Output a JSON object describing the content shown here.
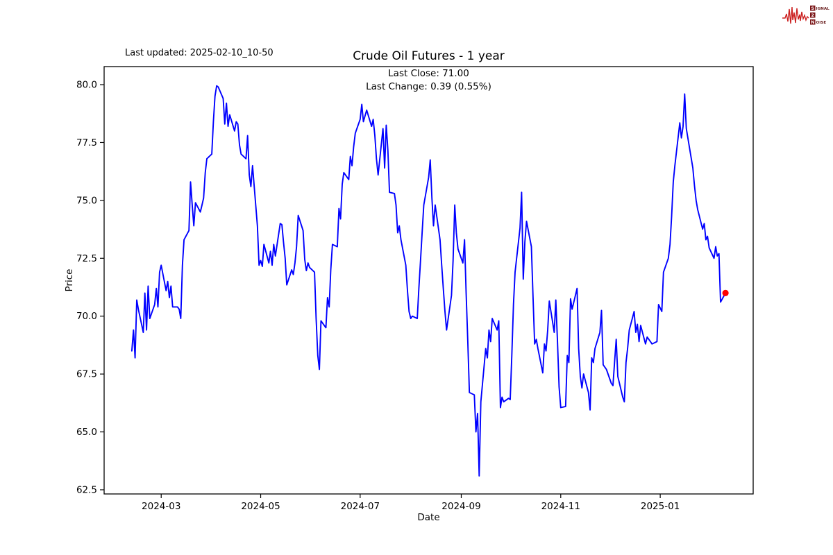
{
  "header": {
    "last_updated": "Last updated: 2025-02-10_10-50",
    "title": "Crude Oil Futures - 1 year",
    "subtitle_line1": "Last Close: 71.00",
    "subtitle_line2": "Last Change: 0.39 (0.55%)"
  },
  "logo": {
    "row1_initial": "S",
    "row1_rest": "IGNAL",
    "row2_initial": "2",
    "row2_rest": "",
    "row3_initial": "N",
    "row3_rest": "OISE",
    "wave_color": "#cc2020",
    "box_color": "#7a1416",
    "text_color": "#6b2020",
    "box_letter_color": "#ffffff"
  },
  "chart_data": {
    "type": "line",
    "title": "Crude Oil Futures - 1 year",
    "xlabel": "Date",
    "ylabel": "Price",
    "last_close": 71.0,
    "last_change": 0.39,
    "last_change_pct": "0.55%",
    "line_color": "#0000ff",
    "marker_color": "#ff0000",
    "axis_color": "#000000",
    "background_color": "#ffffff",
    "grid": false,
    "legend": "none",
    "xlim": [
      "2024-01-26",
      "2025-02-27"
    ],
    "ylim": [
      62.32,
      80.78
    ],
    "yticks": [
      {
        "value": 62.5,
        "label": "62.5"
      },
      {
        "value": 65.0,
        "label": "65.0"
      },
      {
        "value": 67.5,
        "label": "67.5"
      },
      {
        "value": 70.0,
        "label": "70.0"
      },
      {
        "value": 72.5,
        "label": "72.5"
      },
      {
        "value": 75.0,
        "label": "75.0"
      },
      {
        "value": 77.5,
        "label": "77.5"
      },
      {
        "value": 80.0,
        "label": "80.0"
      }
    ],
    "xticks": [
      {
        "value": "2024-03-01",
        "label": "2024-03"
      },
      {
        "value": "2024-05-01",
        "label": "2024-05"
      },
      {
        "value": "2024-07-01",
        "label": "2024-07"
      },
      {
        "value": "2024-09-01",
        "label": "2024-09"
      },
      {
        "value": "2024-11-01",
        "label": "2024-11"
      },
      {
        "value": "2025-01-01",
        "label": "2025-01"
      }
    ],
    "series": [
      {
        "name": "Close",
        "points": [
          [
            "2024-02-12",
            68.5
          ],
          [
            "2024-02-13",
            69.4
          ],
          [
            "2024-02-14",
            68.2
          ],
          [
            "2024-02-15",
            70.7
          ],
          [
            "2024-02-16",
            70.3
          ],
          [
            "2024-02-19",
            69.3
          ],
          [
            "2024-02-20",
            71.0
          ],
          [
            "2024-02-21",
            69.4
          ],
          [
            "2024-02-22",
            71.3
          ],
          [
            "2024-02-23",
            69.9
          ],
          [
            "2024-02-26",
            70.5
          ],
          [
            "2024-02-27",
            71.2
          ],
          [
            "2024-02-28",
            70.4
          ],
          [
            "2024-02-29",
            71.9
          ],
          [
            "2024-03-01",
            72.2
          ],
          [
            "2024-03-04",
            71.1
          ],
          [
            "2024-03-05",
            71.5
          ],
          [
            "2024-03-06",
            70.8
          ],
          [
            "2024-03-07",
            71.3
          ],
          [
            "2024-03-08",
            70.4
          ],
          [
            "2024-03-11",
            70.4
          ],
          [
            "2024-03-12",
            70.3
          ],
          [
            "2024-03-13",
            69.9
          ],
          [
            "2024-03-14",
            72.2
          ],
          [
            "2024-03-15",
            73.3
          ],
          [
            "2024-03-18",
            73.7
          ],
          [
            "2024-03-19",
            75.8
          ],
          [
            "2024-03-20",
            74.8
          ],
          [
            "2024-03-21",
            73.9
          ],
          [
            "2024-03-22",
            74.9
          ],
          [
            "2024-03-25",
            74.5
          ],
          [
            "2024-03-26",
            74.8
          ],
          [
            "2024-03-27",
            75.1
          ],
          [
            "2024-03-28",
            76.2
          ],
          [
            "2024-03-29",
            76.8
          ],
          [
            "2024-04-01",
            77.0
          ],
          [
            "2024-04-02",
            78.4
          ],
          [
            "2024-04-03",
            79.5
          ],
          [
            "2024-04-04",
            79.95
          ],
          [
            "2024-04-05",
            79.9
          ],
          [
            "2024-04-08",
            79.4
          ],
          [
            "2024-04-09",
            78.3
          ],
          [
            "2024-04-10",
            79.2
          ],
          [
            "2024-04-11",
            78.2
          ],
          [
            "2024-04-12",
            78.7
          ],
          [
            "2024-04-15",
            78.0
          ],
          [
            "2024-04-16",
            78.4
          ],
          [
            "2024-04-17",
            78.3
          ],
          [
            "2024-04-18",
            77.4
          ],
          [
            "2024-04-19",
            77.0
          ],
          [
            "2024-04-22",
            76.8
          ],
          [
            "2024-04-23",
            77.8
          ],
          [
            "2024-04-24",
            76.1
          ],
          [
            "2024-04-25",
            75.6
          ],
          [
            "2024-04-26",
            76.5
          ],
          [
            "2024-04-29",
            73.9
          ],
          [
            "2024-04-30",
            72.2
          ],
          [
            "2024-05-01",
            72.4
          ],
          [
            "2024-05-02",
            72.15
          ],
          [
            "2024-05-03",
            73.1
          ],
          [
            "2024-05-06",
            72.3
          ],
          [
            "2024-05-07",
            72.8
          ],
          [
            "2024-05-08",
            72.2
          ],
          [
            "2024-05-09",
            73.1
          ],
          [
            "2024-05-10",
            72.6
          ],
          [
            "2024-05-13",
            74.0
          ],
          [
            "2024-05-14",
            73.95
          ],
          [
            "2024-05-15",
            73.2
          ],
          [
            "2024-05-16",
            72.5
          ],
          [
            "2024-05-17",
            71.35
          ],
          [
            "2024-05-20",
            72.0
          ],
          [
            "2024-05-21",
            71.8
          ],
          [
            "2024-05-22",
            72.3
          ],
          [
            "2024-05-23",
            73.0
          ],
          [
            "2024-05-24",
            74.35
          ],
          [
            "2024-05-27",
            73.7
          ],
          [
            "2024-05-28",
            72.45
          ],
          [
            "2024-05-29",
            71.97
          ],
          [
            "2024-05-30",
            72.3
          ],
          [
            "2024-05-31",
            72.1
          ],
          [
            "2024-06-03",
            71.9
          ],
          [
            "2024-06-04",
            69.9
          ],
          [
            "2024-06-05",
            68.3
          ],
          [
            "2024-06-06",
            67.7
          ],
          [
            "2024-06-07",
            69.8
          ],
          [
            "2024-06-10",
            69.5
          ],
          [
            "2024-06-11",
            70.8
          ],
          [
            "2024-06-12",
            70.4
          ],
          [
            "2024-06-13",
            72.0
          ],
          [
            "2024-06-14",
            73.1
          ],
          [
            "2024-06-17",
            73.0
          ],
          [
            "2024-06-18",
            74.65
          ],
          [
            "2024-06-19",
            74.2
          ],
          [
            "2024-06-20",
            75.7
          ],
          [
            "2024-06-21",
            76.2
          ],
          [
            "2024-06-24",
            75.9
          ],
          [
            "2024-06-25",
            76.9
          ],
          [
            "2024-06-26",
            76.5
          ],
          [
            "2024-06-27",
            77.3
          ],
          [
            "2024-06-28",
            77.9
          ],
          [
            "2024-07-01",
            78.5
          ],
          [
            "2024-07-02",
            79.15
          ],
          [
            "2024-07-03",
            78.4
          ],
          [
            "2024-07-05",
            78.9
          ],
          [
            "2024-07-08",
            78.2
          ],
          [
            "2024-07-09",
            78.5
          ],
          [
            "2024-07-10",
            77.8
          ],
          [
            "2024-07-11",
            76.8
          ],
          [
            "2024-07-12",
            76.1
          ],
          [
            "2024-07-15",
            78.1
          ],
          [
            "2024-07-16",
            76.4
          ],
          [
            "2024-07-17",
            78.25
          ],
          [
            "2024-07-18",
            77.15
          ],
          [
            "2024-07-19",
            75.35
          ],
          [
            "2024-07-22",
            75.3
          ],
          [
            "2024-07-23",
            74.8
          ],
          [
            "2024-07-24",
            73.6
          ],
          [
            "2024-07-25",
            73.9
          ],
          [
            "2024-07-26",
            73.3
          ],
          [
            "2024-07-29",
            72.2
          ],
          [
            "2024-07-30",
            71.1
          ],
          [
            "2024-07-31",
            70.2
          ],
          [
            "2024-08-01",
            69.9
          ],
          [
            "2024-08-02",
            70.0
          ],
          [
            "2024-08-05",
            69.9
          ],
          [
            "2024-08-06",
            71.2
          ],
          [
            "2024-08-07",
            72.4
          ],
          [
            "2024-08-08",
            73.6
          ],
          [
            "2024-08-09",
            74.8
          ],
          [
            "2024-08-12",
            76.0
          ],
          [
            "2024-08-13",
            76.75
          ],
          [
            "2024-08-14",
            75.1
          ],
          [
            "2024-08-15",
            73.9
          ],
          [
            "2024-08-16",
            74.8
          ],
          [
            "2024-08-19",
            73.3
          ],
          [
            "2024-08-20",
            72.2
          ],
          [
            "2024-08-21",
            71.2
          ],
          [
            "2024-08-22",
            70.2
          ],
          [
            "2024-08-23",
            69.4
          ],
          [
            "2024-08-26",
            70.9
          ],
          [
            "2024-08-27",
            72.4
          ],
          [
            "2024-08-28",
            74.8
          ],
          [
            "2024-08-29",
            73.6
          ],
          [
            "2024-08-30",
            72.9
          ],
          [
            "2024-09-02",
            72.3
          ],
          [
            "2024-09-03",
            73.3
          ],
          [
            "2024-09-04",
            71.0
          ],
          [
            "2024-09-05",
            68.9
          ],
          [
            "2024-09-06",
            66.7
          ],
          [
            "2024-09-09",
            66.6
          ],
          [
            "2024-09-10",
            65.0
          ],
          [
            "2024-09-11",
            65.8
          ],
          [
            "2024-09-12",
            63.1
          ],
          [
            "2024-09-13",
            66.3
          ],
          [
            "2024-09-16",
            68.6
          ],
          [
            "2024-09-17",
            68.2
          ],
          [
            "2024-09-18",
            69.4
          ],
          [
            "2024-09-19",
            68.9
          ],
          [
            "2024-09-20",
            69.9
          ],
          [
            "2024-09-23",
            69.4
          ],
          [
            "2024-09-24",
            69.8
          ],
          [
            "2024-09-25",
            66.05
          ],
          [
            "2024-09-26",
            66.5
          ],
          [
            "2024-09-27",
            66.3
          ],
          [
            "2024-09-30",
            66.45
          ],
          [
            "2024-10-01",
            66.4
          ],
          [
            "2024-10-02",
            68.3
          ],
          [
            "2024-10-03",
            70.5
          ],
          [
            "2024-10-04",
            71.9
          ],
          [
            "2024-10-07",
            73.8
          ],
          [
            "2024-10-08",
            75.35
          ],
          [
            "2024-10-09",
            71.6
          ],
          [
            "2024-10-10",
            73.2
          ],
          [
            "2024-10-11",
            74.1
          ],
          [
            "2024-10-14",
            73.0
          ],
          [
            "2024-10-15",
            70.8
          ],
          [
            "2024-10-16",
            68.8
          ],
          [
            "2024-10-17",
            69.0
          ],
          [
            "2024-10-18",
            68.6
          ],
          [
            "2024-10-21",
            67.55
          ],
          [
            "2024-10-22",
            68.8
          ],
          [
            "2024-10-23",
            68.5
          ],
          [
            "2024-10-24",
            69.4
          ],
          [
            "2024-10-25",
            70.65
          ],
          [
            "2024-10-28",
            69.3
          ],
          [
            "2024-10-29",
            70.7
          ],
          [
            "2024-10-30",
            68.9
          ],
          [
            "2024-10-31",
            66.95
          ],
          [
            "2024-11-01",
            66.05
          ],
          [
            "2024-11-04",
            66.1
          ],
          [
            "2024-11-05",
            68.3
          ],
          [
            "2024-11-06",
            68.0
          ],
          [
            "2024-11-07",
            70.75
          ],
          [
            "2024-11-08",
            70.3
          ],
          [
            "2024-11-11",
            71.2
          ],
          [
            "2024-11-12",
            68.6
          ],
          [
            "2024-11-13",
            67.4
          ],
          [
            "2024-11-14",
            66.9
          ],
          [
            "2024-11-15",
            67.5
          ],
          [
            "2024-11-18",
            66.7
          ],
          [
            "2024-11-19",
            65.95
          ],
          [
            "2024-11-20",
            68.2
          ],
          [
            "2024-11-21",
            68.0
          ],
          [
            "2024-11-22",
            68.6
          ],
          [
            "2024-11-25",
            69.3
          ],
          [
            "2024-11-26",
            70.25
          ],
          [
            "2024-11-27",
            67.9
          ],
          [
            "2024-11-28",
            67.8
          ],
          [
            "2024-11-29",
            67.7
          ],
          [
            "2024-12-02",
            67.1
          ],
          [
            "2024-12-03",
            67.0
          ],
          [
            "2024-12-04",
            68.0
          ],
          [
            "2024-12-05",
            69.0
          ],
          [
            "2024-12-06",
            67.4
          ],
          [
            "2024-12-09",
            66.5
          ],
          [
            "2024-12-10",
            66.3
          ],
          [
            "2024-12-11",
            68.0
          ],
          [
            "2024-12-12",
            68.6
          ],
          [
            "2024-12-13",
            69.4
          ],
          [
            "2024-12-16",
            70.2
          ],
          [
            "2024-12-17",
            69.3
          ],
          [
            "2024-12-18",
            69.65
          ],
          [
            "2024-12-19",
            68.9
          ],
          [
            "2024-12-20",
            69.6
          ],
          [
            "2024-12-23",
            68.8
          ],
          [
            "2024-12-24",
            69.1
          ],
          [
            "2024-12-26",
            68.9
          ],
          [
            "2024-12-27",
            68.8
          ],
          [
            "2024-12-30",
            68.9
          ],
          [
            "2024-12-31",
            70.5
          ],
          [
            "2025-01-02",
            70.2
          ],
          [
            "2025-01-03",
            71.9
          ],
          [
            "2025-01-06",
            72.5
          ],
          [
            "2025-01-07",
            73.1
          ],
          [
            "2025-01-08",
            74.3
          ],
          [
            "2025-01-09",
            75.8
          ],
          [
            "2025-01-10",
            76.5
          ],
          [
            "2025-01-13",
            78.35
          ],
          [
            "2025-01-14",
            77.7
          ],
          [
            "2025-01-15",
            78.2
          ],
          [
            "2025-01-16",
            79.6
          ],
          [
            "2025-01-17",
            78.1
          ],
          [
            "2025-01-21",
            76.4
          ],
          [
            "2025-01-22",
            75.65
          ],
          [
            "2025-01-23",
            75.0
          ],
          [
            "2025-01-24",
            74.6
          ],
          [
            "2025-01-27",
            73.76
          ],
          [
            "2025-01-28",
            74.0
          ],
          [
            "2025-01-29",
            73.3
          ],
          [
            "2025-01-30",
            73.45
          ],
          [
            "2025-01-31",
            72.95
          ],
          [
            "2025-02-03",
            72.5
          ],
          [
            "2025-02-04",
            73.0
          ],
          [
            "2025-02-05",
            72.6
          ],
          [
            "2025-02-06",
            72.7
          ],
          [
            "2025-02-07",
            70.61
          ],
          [
            "2025-02-10",
            71.0
          ]
        ]
      }
    ]
  }
}
